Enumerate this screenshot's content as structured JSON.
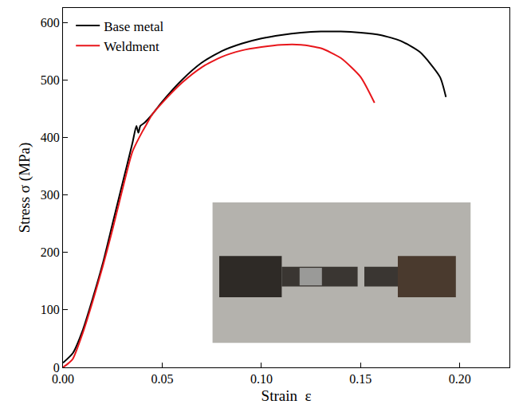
{
  "chart_data": {
    "type": "line",
    "x_label": "Strain  ε",
    "y_label": "Stress σ (MPa)",
    "xlim": [
      0,
      0.225
    ],
    "ylim": [
      0,
      625
    ],
    "xticks": [
      {
        "value": 0,
        "label": "0.00"
      },
      0.05,
      {
        "value": 0.1,
        "label": "0.10"
      },
      0.15,
      {
        "value": 0.2,
        "label": "0.20"
      }
    ],
    "yticks": [
      0,
      100,
      200,
      300,
      400,
      500,
      600
    ],
    "grid": false,
    "legend": "upper left",
    "series": [
      {
        "name": "Base metal",
        "color": "#000000",
        "x": [
          0,
          0.005,
          0.01,
          0.015,
          0.02,
          0.025,
          0.03,
          0.035,
          0.037,
          0.038,
          0.039,
          0.041,
          0.045,
          0.05,
          0.06,
          0.07,
          0.08,
          0.09,
          0.1,
          0.11,
          0.12,
          0.13,
          0.14,
          0.15,
          0.16,
          0.17,
          0.18,
          0.19,
          0.193
        ],
        "values": [
          8,
          25,
          65,
          120,
          180,
          250,
          320,
          390,
          420,
          408,
          420,
          425,
          440,
          462,
          500,
          530,
          550,
          563,
          572,
          578,
          582,
          584,
          584,
          582,
          578,
          568,
          548,
          505,
          470
        ]
      },
      {
        "name": "Weldment",
        "color": "#e8161b",
        "x": [
          0,
          0.002,
          0.003,
          0.005,
          0.01,
          0.015,
          0.02,
          0.025,
          0.03,
          0.035,
          0.04,
          0.042,
          0.045,
          0.05,
          0.06,
          0.07,
          0.08,
          0.09,
          0.1,
          0.11,
          0.12,
          0.13,
          0.14,
          0.15,
          0.157
        ],
        "values": [
          0,
          5,
          8,
          15,
          60,
          115,
          175,
          240,
          310,
          375,
          410,
          422,
          440,
          460,
          495,
          522,
          540,
          551,
          557,
          561,
          561,
          555,
          538,
          505,
          460
        ]
      }
    ]
  }
}
